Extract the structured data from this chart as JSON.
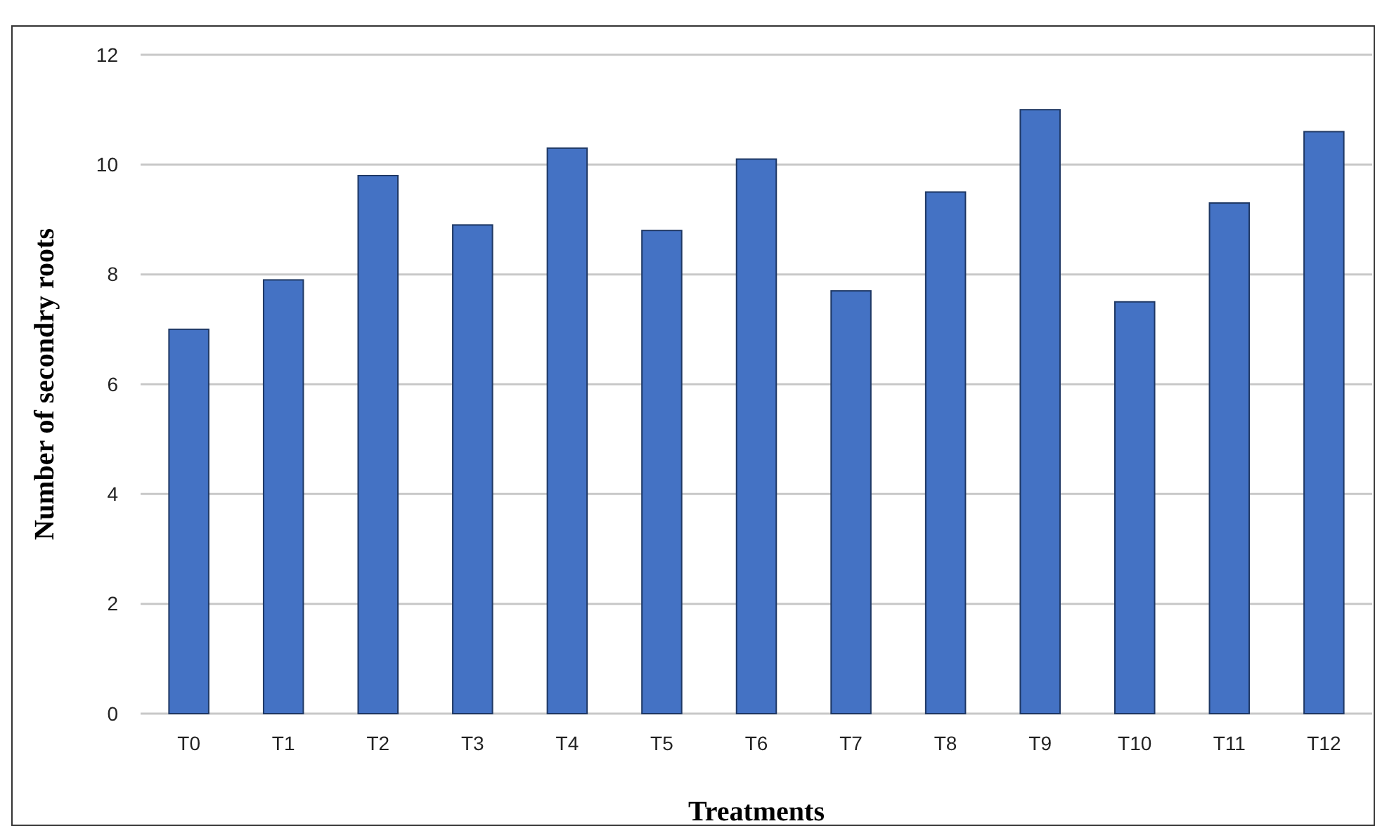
{
  "chart_data": {
    "type": "bar",
    "xlabel": "Treatments",
    "ylabel": "Number of secondry roots",
    "categories": [
      "T0",
      "T1",
      "T2",
      "T3",
      "T4",
      "T5",
      "T6",
      "T7",
      "T8",
      "T9",
      "T10",
      "T11",
      "T12"
    ],
    "values": [
      7.0,
      7.9,
      9.8,
      8.9,
      10.3,
      8.8,
      10.1,
      7.7,
      9.5,
      11.0,
      7.5,
      9.3,
      10.6
    ],
    "color": "#4472c4",
    "ylim": [
      0,
      12
    ],
    "yticks": [
      0,
      2,
      4,
      6,
      8,
      10,
      12
    ],
    "grid": "y"
  }
}
